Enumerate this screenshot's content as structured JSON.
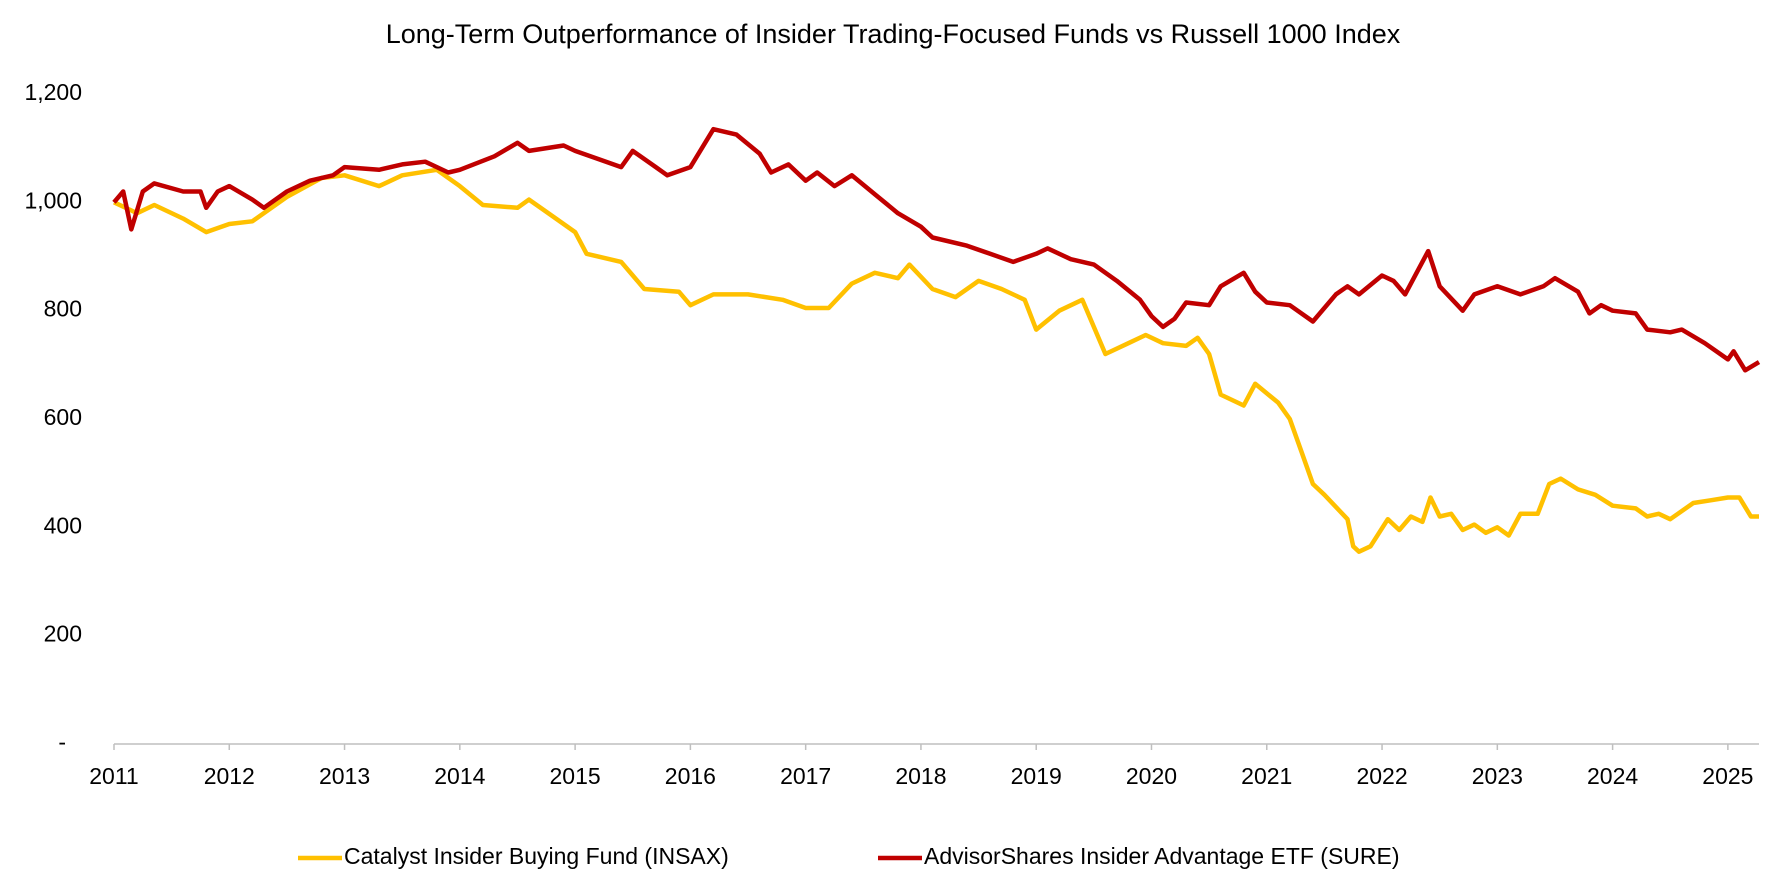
{
  "chart_data": {
    "type": "line",
    "title": "Long-Term Outperformance of Insider Trading-Focused Funds vs Russell 1000 Index",
    "xlim": [
      2011,
      2025.27
    ],
    "xticks": [
      2011,
      2012,
      2013,
      2014,
      2015,
      2016,
      2017,
      2018,
      2019,
      2020,
      2021,
      2022,
      2023,
      2024,
      2025
    ],
    "ylim": [
      0,
      1200
    ],
    "yticks": [
      {
        "value": 0,
        "label": "-"
      },
      200,
      400,
      600,
      800,
      {
        "value": 1000,
        "label": "1,000"
      },
      {
        "value": 1200,
        "label": "1,200"
      }
    ],
    "grid": false,
    "series": [
      {
        "name": "Catalyst Insider Buying Fund (INSAX)",
        "color": "#FFC000",
        "x": [
          2011.0,
          2011.2,
          2011.35,
          2011.6,
          2011.8,
          2012.0,
          2012.2,
          2012.5,
          2012.8,
          2013.0,
          2013.3,
          2013.5,
          2013.8,
          2014.0,
          2014.2,
          2014.5,
          2014.6,
          2014.8,
          2015.0,
          2015.1,
          2015.4,
          2015.6,
          2015.9,
          2016.0,
          2016.2,
          2016.5,
          2016.8,
          2017.0,
          2017.2,
          2017.4,
          2017.6,
          2017.8,
          2017.9,
          2018.1,
          2018.3,
          2018.5,
          2018.7,
          2018.9,
          2019.0,
          2019.2,
          2019.4,
          2019.6,
          2019.8,
          2019.95,
          2020.1,
          2020.3,
          2020.4,
          2020.5,
          2020.6,
          2020.8,
          2020.9,
          2021.1,
          2021.2,
          2021.3,
          2021.4,
          2021.5,
          2021.7,
          2021.75,
          2021.8,
          2021.9,
          2022.05,
          2022.15,
          2022.25,
          2022.35,
          2022.42,
          2022.5,
          2022.6,
          2022.7,
          2022.8,
          2022.9,
          2023.0,
          2023.1,
          2023.2,
          2023.35,
          2023.45,
          2023.55,
          2023.7,
          2023.85,
          2024.0,
          2024.2,
          2024.3,
          2024.4,
          2024.5,
          2024.7,
          2024.85,
          2025.0,
          2025.1,
          2025.2,
          2025.27
        ],
        "values": [
          1000,
          980,
          995,
          970,
          945,
          960,
          965,
          1010,
          1045,
          1050,
          1030,
          1050,
          1060,
          1030,
          995,
          990,
          1005,
          975,
          945,
          905,
          890,
          840,
          835,
          810,
          830,
          830,
          820,
          805,
          805,
          850,
          870,
          860,
          885,
          840,
          825,
          855,
          840,
          820,
          765,
          800,
          820,
          720,
          740,
          755,
          740,
          735,
          750,
          720,
          645,
          625,
          665,
          630,
          600,
          540,
          480,
          460,
          415,
          365,
          355,
          365,
          415,
          395,
          420,
          410,
          455,
          420,
          425,
          395,
          405,
          390,
          400,
          385,
          425,
          425,
          480,
          490,
          470,
          460,
          440,
          435,
          420,
          425,
          415,
          445,
          450,
          455,
          455,
          420,
          420
        ]
      },
      {
        "name": "AdvisorShares Insider Advantage ETF (SURE)",
        "color": "#C00000",
        "x": [
          2011.0,
          2011.08,
          2011.15,
          2011.25,
          2011.35,
          2011.6,
          2011.75,
          2011.8,
          2011.9,
          2012.0,
          2012.2,
          2012.3,
          2012.5,
          2012.7,
          2012.9,
          2013.0,
          2013.3,
          2013.5,
          2013.7,
          2013.9,
          2014.0,
          2014.3,
          2014.5,
          2014.6,
          2014.9,
          2015.0,
          2015.2,
          2015.4,
          2015.5,
          2015.7,
          2015.8,
          2016.0,
          2016.2,
          2016.4,
          2016.6,
          2016.7,
          2016.85,
          2017.0,
          2017.1,
          2017.25,
          2017.4,
          2017.6,
          2017.8,
          2018.0,
          2018.1,
          2018.4,
          2018.6,
          2018.8,
          2019.0,
          2019.1,
          2019.3,
          2019.5,
          2019.7,
          2019.9,
          2020.0,
          2020.1,
          2020.2,
          2020.3,
          2020.5,
          2020.6,
          2020.8,
          2020.9,
          2021.0,
          2021.2,
          2021.4,
          2021.6,
          2021.7,
          2021.8,
          2022.0,
          2022.1,
          2022.2,
          2022.3,
          2022.4,
          2022.5,
          2022.7,
          2022.8,
          2023.0,
          2023.2,
          2023.4,
          2023.5,
          2023.7,
          2023.8,
          2023.9,
          2024.0,
          2024.2,
          2024.3,
          2024.5,
          2024.6,
          2024.8,
          2025.0,
          2025.05,
          2025.15,
          2025.27
        ],
        "values": [
          1000,
          1020,
          950,
          1020,
          1035,
          1020,
          1020,
          990,
          1020,
          1030,
          1005,
          990,
          1020,
          1040,
          1050,
          1065,
          1060,
          1070,
          1075,
          1055,
          1060,
          1085,
          1110,
          1095,
          1105,
          1095,
          1080,
          1065,
          1095,
          1065,
          1050,
          1065,
          1135,
          1125,
          1090,
          1055,
          1070,
          1040,
          1055,
          1030,
          1050,
          1015,
          980,
          955,
          935,
          920,
          905,
          890,
          905,
          915,
          895,
          885,
          855,
          820,
          790,
          770,
          785,
          815,
          810,
          845,
          870,
          835,
          815,
          810,
          780,
          830,
          845,
          830,
          865,
          855,
          830,
          870,
          910,
          845,
          800,
          830,
          845,
          830,
          845,
          860,
          835,
          795,
          810,
          800,
          795,
          765,
          760,
          765,
          740,
          710,
          725,
          690,
          705
        ]
      }
    ]
  }
}
